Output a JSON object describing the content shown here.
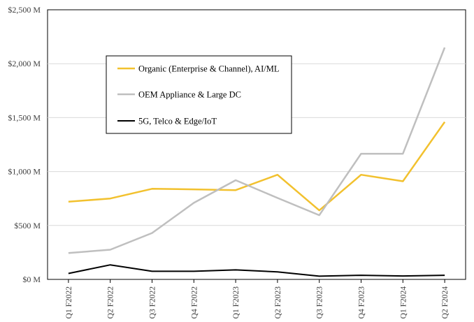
{
  "chart_data": {
    "type": "line",
    "categories": [
      "Q1 F2022",
      "Q2 F2022",
      "Q3 F2022",
      "Q4 F2022",
      "Q1 F2023",
      "Q2 F2023",
      "Q3 F2023",
      "Q4 F2023",
      "Q1 F2024",
      "Q2 F2024"
    ],
    "ylim": [
      0,
      2500
    ],
    "yticks": [
      0,
      500,
      1000,
      1500,
      2000,
      2500
    ],
    "ytick_labels": [
      "$0 M",
      "$500 M",
      "$1,000 M",
      "$1,500 M",
      "$2,000 M",
      "$2,500 M"
    ],
    "grid": true,
    "legend_position": "upper-left inside plot",
    "series": [
      {
        "name": "Organic (Enterprise & Channel), AI/ML",
        "color": "#F2C12E",
        "values": [
          720,
          750,
          840,
          835,
          828,
          970,
          640,
          970,
          910,
          1460
        ]
      },
      {
        "name": "OEM Appliance & Large DC",
        "color": "#BFBFBF",
        "values": [
          245,
          275,
          430,
          710,
          920,
          755,
          595,
          1165,
          1165,
          2150
        ]
      },
      {
        "name": "5G, Telco & Edge/IoT",
        "color": "#000000",
        "values": [
          55,
          135,
          75,
          75,
          88,
          70,
          30,
          38,
          32,
          38
        ]
      }
    ]
  }
}
